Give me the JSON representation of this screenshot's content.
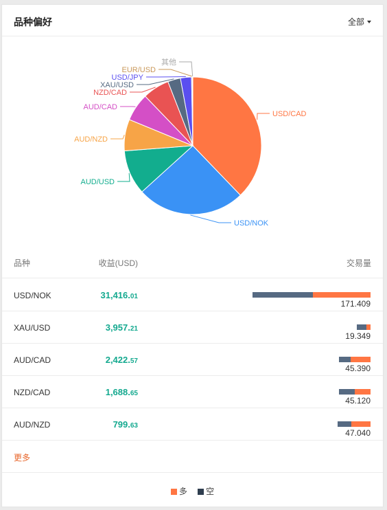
{
  "header": {
    "title": "品种偏好",
    "filter_label": "全部"
  },
  "chart_data": {
    "type": "pie",
    "slices": [
      {
        "label": "USD/CAD",
        "value": 37.8,
        "color": "#ff7643"
      },
      {
        "label": "USD/NOK",
        "value": 25.5,
        "color": "#3a92f5"
      },
      {
        "label": "AUD/USD",
        "value": 10.5,
        "color": "#12ad8e"
      },
      {
        "label": "AUD/NZD",
        "value": 7.4,
        "color": "#f7a447"
      },
      {
        "label": "AUD/CAD",
        "value": 6.6,
        "color": "#d44fc6"
      },
      {
        "label": "NZD/CAD",
        "value": 6.3,
        "color": "#e95353"
      },
      {
        "label": "XAU/USD",
        "value": 3.0,
        "color": "#566a82"
      },
      {
        "label": "USD/JPY",
        "value": 2.6,
        "color": "#5a4ff0"
      },
      {
        "label": "EUR/USD",
        "value": 0.2,
        "color": "#c9985a"
      },
      {
        "label": "其他",
        "value": 0.1,
        "color": "#aaaaaa"
      }
    ]
  },
  "table": {
    "headers": {
      "name": "品种",
      "profit": "收益(USD)",
      "volume": "交易量"
    },
    "rows": [
      {
        "name": "USD/NOK",
        "profit_int": "31,416.",
        "profit_dec": "01",
        "volume": "171.409",
        "short_share": 0.51
      },
      {
        "name": "XAU/USD",
        "profit_int": "3,957.",
        "profit_dec": "21",
        "volume": "19.349",
        "short_share": 0.7
      },
      {
        "name": "AUD/CAD",
        "profit_int": "2,422.",
        "profit_dec": "57",
        "volume": "45.390",
        "short_share": 0.38
      },
      {
        "name": "NZD/CAD",
        "profit_int": "1,688.",
        "profit_dec": "65",
        "volume": "45.120",
        "short_share": 0.5
      },
      {
        "name": "AUD/NZD",
        "profit_int": "799.",
        "profit_dec": "63",
        "volume": "47.040",
        "short_share": 0.42
      }
    ]
  },
  "more_label": "更多",
  "legend": [
    {
      "label": "多",
      "color": "#ff7643"
    },
    {
      "label": "空",
      "color": "#2f3e4f"
    }
  ]
}
